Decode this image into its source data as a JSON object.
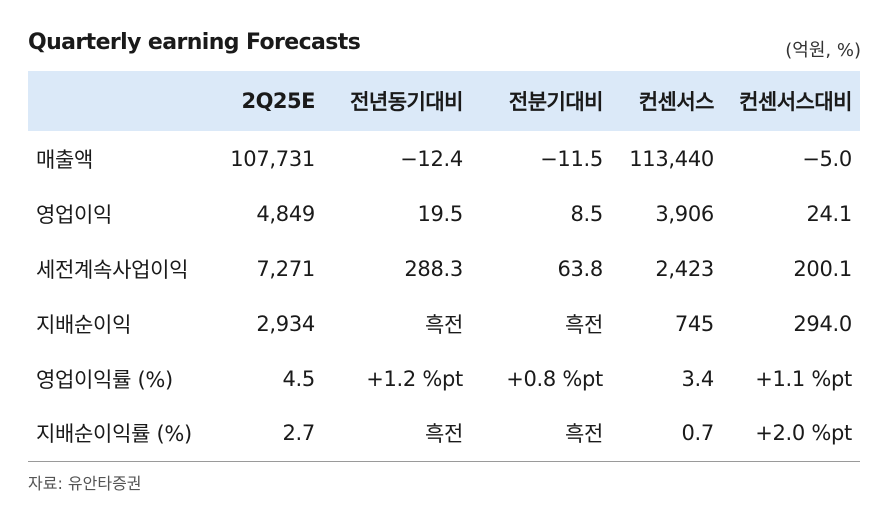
{
  "title": "Quarterly earning Forecasts",
  "unit": "(억원, %)",
  "table": {
    "headers": [
      "",
      "2Q25E",
      "전년동기대비",
      "전분기대비",
      "컨센서스",
      "컨센서스대비"
    ],
    "rows": [
      [
        "매출액",
        "107,731",
        "−12.4",
        "−11.5",
        "113,440",
        "−5.0"
      ],
      [
        "영업이익",
        "4,849",
        "19.5",
        "8.5",
        "3,906",
        "24.1"
      ],
      [
        "세전계속사업이익",
        "7,271",
        "288.3",
        "63.8",
        "2,423",
        "200.1"
      ],
      [
        "지배순이익",
        "2,934",
        "흑전",
        "흑전",
        "745",
        "294.0"
      ],
      [
        "영업이익률 (%)",
        "4.5",
        "+1.2 %pt",
        "+0.8 %pt",
        "3.4",
        "+1.1 %pt"
      ],
      [
        "지배순이익률 (%)",
        "2.7",
        "흑전",
        "흑전",
        "0.7",
        "+2.0 %pt"
      ]
    ]
  },
  "source": "자료: 유안타증권",
  "colors": {
    "header_bg": "#dbe9f8",
    "rule": "#9a9a9a"
  }
}
